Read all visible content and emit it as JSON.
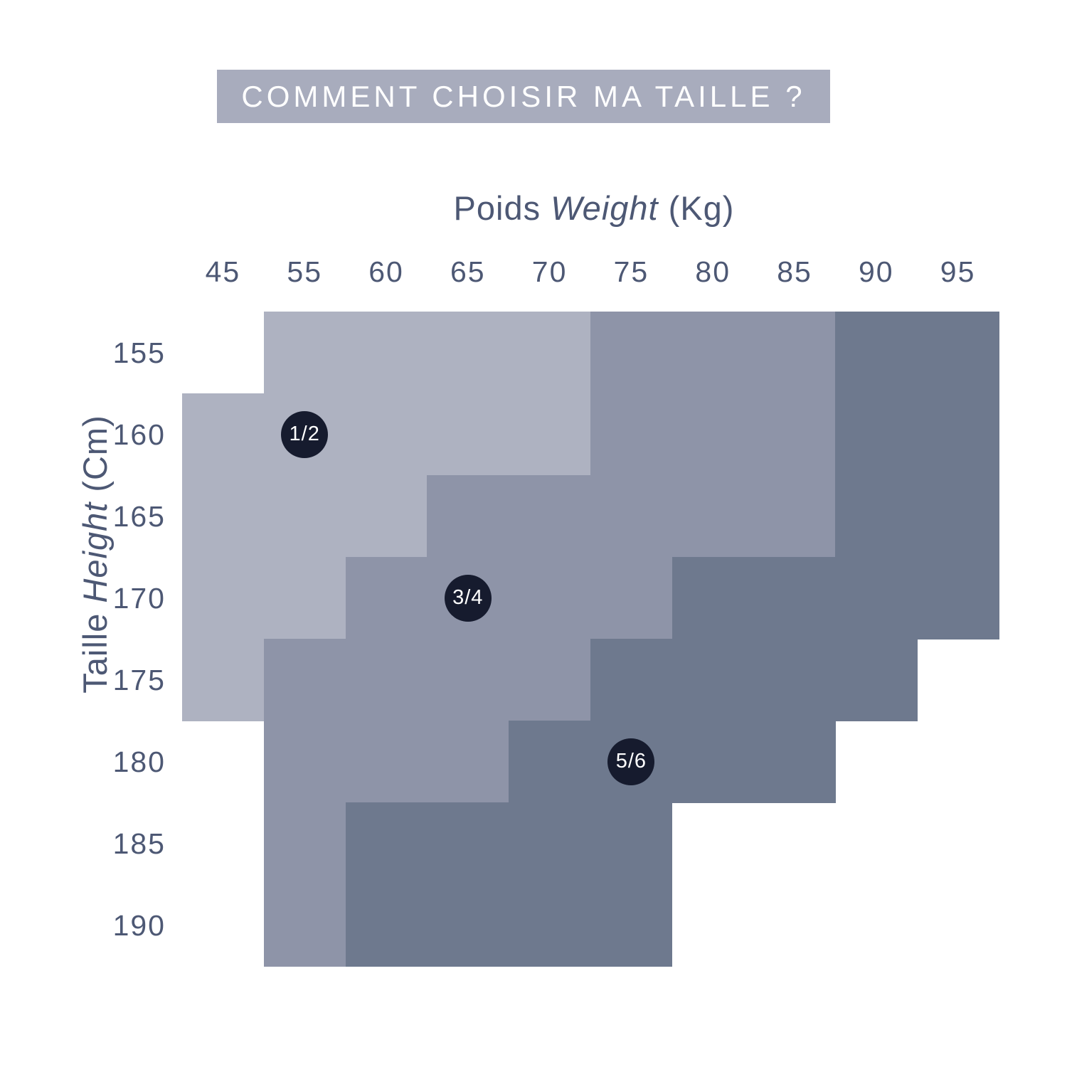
{
  "title": "COMMENT CHOISIR MA TAILLE ?",
  "colors": {
    "banner_bg": "#a8acbd",
    "text": "#4d5874",
    "badge_bg": "#161b2e",
    "badge_text": "#ffffff",
    "background": "#ffffff"
  },
  "chart_data": {
    "type": "heatmap",
    "title": "COMMENT CHOISIR MA TAILLE ?",
    "x_axis": {
      "label_fr": "Poids ",
      "label_en": "Weight",
      "unit": " (Kg)",
      "ticks": [
        "45",
        "55",
        "60",
        "65",
        "70",
        "75",
        "80",
        "85",
        "90",
        "95"
      ]
    },
    "y_axis": {
      "label_fr": "Taille ",
      "label_en": "Height",
      "unit": " (Cm)",
      "ticks": [
        "155",
        "160",
        "165",
        "170",
        "175",
        "180",
        "185",
        "190"
      ]
    },
    "legend_position": "badges-inside-zones",
    "grid": false,
    "zones": [
      {
        "size": "1/2",
        "color": "#aeb2c1",
        "badge_cell": {
          "weight": "55",
          "height": "160"
        },
        "rows": [
          {
            "height": "155",
            "from": "55",
            "to": "70"
          },
          {
            "height": "160",
            "from": "45",
            "to": "70"
          },
          {
            "height": "165",
            "from": "45",
            "to": "60"
          },
          {
            "height": "170",
            "from": "45",
            "to": "55"
          },
          {
            "height": "175",
            "from": "45",
            "to": "45"
          }
        ]
      },
      {
        "size": "3/4",
        "color": "#8e94a8",
        "badge_cell": {
          "weight": "65",
          "height": "170"
        },
        "rows": [
          {
            "height": "155",
            "from": "75",
            "to": "85"
          },
          {
            "height": "160",
            "from": "75",
            "to": "85"
          },
          {
            "height": "165",
            "from": "65",
            "to": "85"
          },
          {
            "height": "170",
            "from": "60",
            "to": "75"
          },
          {
            "height": "175",
            "from": "55",
            "to": "70"
          },
          {
            "height": "180",
            "from": "55",
            "to": "65"
          },
          {
            "height": "185",
            "from": "55",
            "to": "55"
          },
          {
            "height": "190",
            "from": "55",
            "to": "55"
          }
        ]
      },
      {
        "size": "5/6",
        "color": "#6e798e",
        "badge_cell": {
          "weight": "75",
          "height": "180"
        },
        "rows": [
          {
            "height": "155",
            "from": "90",
            "to": "95"
          },
          {
            "height": "160",
            "from": "90",
            "to": "95"
          },
          {
            "height": "165",
            "from": "90",
            "to": "95"
          },
          {
            "height": "170",
            "from": "80",
            "to": "95"
          },
          {
            "height": "175",
            "from": "75",
            "to": "90"
          },
          {
            "height": "180",
            "from": "70",
            "to": "85"
          },
          {
            "height": "185",
            "from": "60",
            "to": "75"
          },
          {
            "height": "190",
            "from": "60",
            "to": "75"
          }
        ]
      }
    ]
  }
}
